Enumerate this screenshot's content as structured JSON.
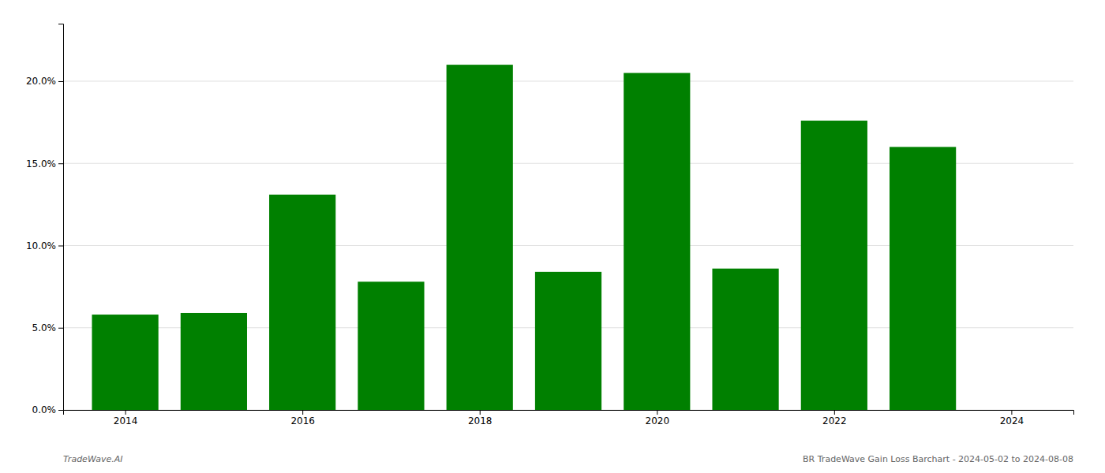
{
  "chart_data": {
    "type": "bar",
    "x": [
      2014,
      2015,
      2016,
      2017,
      2018,
      2019,
      2020,
      2021,
      2022,
      2023
    ],
    "values": [
      0.058,
      0.059,
      0.131,
      0.078,
      0.21,
      0.084,
      0.205,
      0.086,
      0.176,
      0.16
    ],
    "color": "#008000",
    "xlim": [
      2013.3,
      2024.7
    ],
    "xticks": [
      2014,
      2016,
      2018,
      2020,
      2022,
      2024
    ],
    "ylim": [
      0,
      0.235
    ],
    "yticks": [
      {
        "value": 0.0,
        "label": "0.0%"
      },
      {
        "value": 0.05,
        "label": "5.0%"
      },
      {
        "value": 0.1,
        "label": "10.0%"
      },
      {
        "value": 0.15,
        "label": "15.0%"
      },
      {
        "value": 0.2,
        "label": "20.0%"
      }
    ],
    "grid": true,
    "annotations": [
      "TradeWave.AI",
      "BR TradeWave Gain Loss Barchart - 2024-05-02 to 2024-08-08"
    ]
  }
}
